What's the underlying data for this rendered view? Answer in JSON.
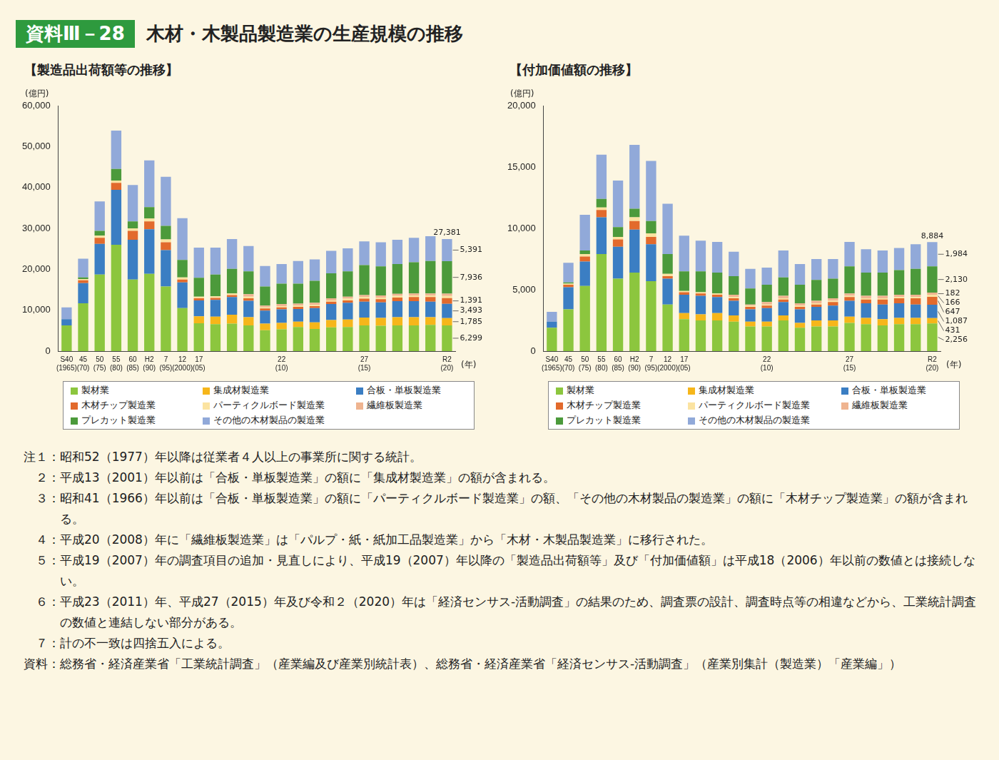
{
  "header": {
    "badge": "資料Ⅲ－28",
    "title": "木材・木製品製造業の生産規模の推移"
  },
  "chart_data": [
    {
      "type": "bar",
      "title": "【製造品出荷額等の推移】",
      "y_label": "(億円)",
      "x_label": "(年)",
      "stacked": true,
      "grid": false,
      "legend": "bottom",
      "categories": [
        [
          "S40",
          "(1965)"
        ],
        [
          "45",
          "(70)"
        ],
        [
          "50",
          "(75)"
        ],
        [
          "55",
          "(80)"
        ],
        [
          "60",
          "(85)"
        ],
        [
          "H2",
          "(90)"
        ],
        [
          "7",
          "(95)"
        ],
        [
          "12",
          "(2000)"
        ],
        [
          "17",
          "(05)"
        ],
        null,
        null,
        null,
        null,
        [
          "22",
          "(10)"
        ],
        null,
        null,
        null,
        null,
        [
          "27",
          "(15)"
        ],
        null,
        null,
        null,
        null,
        [
          "R2",
          "(20)"
        ]
      ],
      "ylim": [
        0,
        60000
      ],
      "yticks": [
        0,
        {
          "value": 10000,
          "label": "10,000"
        },
        {
          "value": 20000,
          "label": "20,000"
        },
        {
          "value": 30000,
          "label": "30,000"
        },
        {
          "value": 40000,
          "label": "40,000"
        },
        {
          "value": 50000,
          "label": "50,000"
        },
        {
          "value": 60000,
          "label": "60,000"
        }
      ],
      "series": [
        {
          "name": "製材業",
          "color": "#8cc63e",
          "values": [
            6300,
            11700,
            18700,
            26000,
            17500,
            18900,
            15800,
            10500,
            6800,
            6600,
            6700,
            6300,
            5100,
            5300,
            5900,
            5400,
            5800,
            5900,
            6300,
            6200,
            6300,
            6300,
            6400,
            6299
          ],
          "value_labels": [
            null,
            null,
            null,
            null,
            null,
            null,
            null,
            null,
            null,
            null,
            null,
            null,
            null,
            null,
            null,
            null,
            null,
            null,
            null,
            null,
            null,
            null,
            null,
            "6,299"
          ]
        },
        {
          "name": "集成材製造業",
          "color": "#f6b61a",
          "values": [
            null,
            null,
            null,
            null,
            null,
            null,
            null,
            null,
            1700,
            1800,
            2200,
            2000,
            1600,
            1600,
            1300,
            1600,
            1800,
            1800,
            1900,
            1900,
            2000,
            2000,
            1900,
            1785
          ],
          "value_labels": [
            null,
            null,
            null,
            null,
            null,
            null,
            null,
            null,
            null,
            null,
            null,
            null,
            null,
            null,
            null,
            null,
            null,
            null,
            null,
            null,
            null,
            null,
            null,
            "1,785"
          ]
        },
        {
          "name": "合板・単板製造業",
          "color": "#3b7ec3",
          "values": [
            1500,
            4900,
            7500,
            13400,
            9700,
            10900,
            8900,
            6300,
            3900,
            4100,
            4300,
            4000,
            3200,
            3300,
            3100,
            3500,
            3900,
            4100,
            3900,
            3800,
            3900,
            3900,
            3800,
            3493
          ],
          "value_labels": [
            null,
            null,
            null,
            null,
            null,
            null,
            null,
            null,
            null,
            null,
            null,
            null,
            null,
            null,
            null,
            null,
            null,
            null,
            null,
            null,
            null,
            null,
            null,
            "3,493"
          ]
        },
        {
          "name": "木材チップ製造業",
          "color": "#e26a2c",
          "values": [
            null,
            700,
            1500,
            1700,
            2200,
            1900,
            1900,
            700,
            500,
            500,
            500,
            600,
            500,
            500,
            500,
            500,
            600,
            600,
            700,
            800,
            900,
            1000,
            1100,
            1391
          ],
          "value_labels": [
            null,
            null,
            null,
            null,
            null,
            null,
            null,
            null,
            null,
            null,
            null,
            null,
            null,
            null,
            null,
            null,
            null,
            null,
            null,
            null,
            null,
            null,
            null,
            "1,391"
          ]
        },
        {
          "name": "パーティクルボード製造業",
          "color": "#fbe3a1",
          "values": [
            null,
            300,
            500,
            600,
            600,
            700,
            700,
            500,
            400,
            400,
            400,
            400,
            300,
            300,
            300,
            300,
            300,
            400,
            400,
            400,
            400,
            400,
            400,
            500
          ]
        },
        {
          "name": "繊維板製造業",
          "color": "#efb490",
          "values": [
            null,
            null,
            null,
            null,
            null,
            null,
            null,
            null,
            null,
            null,
            null,
            600,
            400,
            500,
            500,
            500,
            500,
            500,
            500,
            500,
            500,
            500,
            500,
            586
          ]
        },
        {
          "name": "プレカット製造業",
          "color": "#4c9a3b",
          "values": [
            null,
            400,
            1200,
            2800,
            1700,
            2800,
            3300,
            4300,
            4600,
            5300,
            6000,
            5600,
            4700,
            5000,
            4900,
            5400,
            6100,
            6200,
            7300,
            7100,
            7300,
            7600,
            7900,
            7936
          ],
          "value_labels": [
            null,
            null,
            null,
            null,
            null,
            null,
            null,
            null,
            null,
            null,
            null,
            null,
            null,
            null,
            null,
            null,
            null,
            null,
            null,
            null,
            null,
            null,
            null,
            "7,936"
          ]
        },
        {
          "name": "その他の木材製品の製造業",
          "color": "#91a9d9",
          "values": [
            2900,
            4600,
            7200,
            9400,
            8900,
            11400,
            12000,
            10200,
            7400,
            6600,
            7300,
            6200,
            5000,
            4800,
            5500,
            5200,
            5500,
            5600,
            5800,
            5900,
            5900,
            6000,
            6100,
            5391
          ],
          "value_labels": [
            null,
            null,
            null,
            null,
            null,
            null,
            null,
            null,
            null,
            null,
            null,
            null,
            null,
            null,
            null,
            null,
            null,
            null,
            null,
            null,
            null,
            null,
            null,
            "5,391"
          ]
        }
      ],
      "annotations": [
        {
          "index": 23,
          "value": 27381,
          "text": "27,381"
        }
      ]
    },
    {
      "type": "bar",
      "title": "【付加価値額の推移】",
      "y_label": "(億円)",
      "x_label": "(年)",
      "stacked": true,
      "grid": false,
      "legend": "bottom",
      "categories": [
        [
          "S40",
          "(1965)"
        ],
        [
          "45",
          "(70)"
        ],
        [
          "50",
          "(75)"
        ],
        [
          "55",
          "(80)"
        ],
        [
          "60",
          "(85)"
        ],
        [
          "H2",
          "(90)"
        ],
        [
          "7",
          "(95)"
        ],
        [
          "12",
          "(2000)"
        ],
        [
          "17",
          "(05)"
        ],
        null,
        null,
        null,
        null,
        [
          "22",
          "(10)"
        ],
        null,
        null,
        null,
        null,
        [
          "27",
          "(15)"
        ],
        null,
        null,
        null,
        null,
        [
          "R2",
          "(20)"
        ]
      ],
      "ylim": [
        0,
        20000
      ],
      "yticks": [
        0,
        {
          "value": 5000,
          "label": "5,000"
        },
        {
          "value": 10000,
          "label": "10,000"
        },
        {
          "value": 15000,
          "label": "15,000"
        },
        {
          "value": 20000,
          "label": "20,000"
        }
      ],
      "series": [
        {
          "name": "製材業",
          "color": "#8cc63e",
          "values": [
            1900,
            3400,
            5300,
            7900,
            5900,
            6400,
            5700,
            3800,
            2600,
            2500,
            2500,
            2400,
            2000,
            2000,
            2500,
            1900,
            2000,
            2000,
            2300,
            2200,
            2100,
            2200,
            2200,
            2256
          ],
          "value_labels": [
            null,
            null,
            null,
            null,
            null,
            null,
            null,
            null,
            null,
            null,
            null,
            null,
            null,
            null,
            null,
            null,
            null,
            null,
            null,
            null,
            null,
            null,
            null,
            "2,256"
          ]
        },
        {
          "name": "集成材製造業",
          "color": "#f6b61a",
          "values": [
            null,
            null,
            null,
            null,
            null,
            null,
            null,
            null,
            500,
            500,
            600,
            500,
            400,
            400,
            400,
            400,
            500,
            500,
            500,
            500,
            500,
            500,
            500,
            431
          ],
          "value_labels": [
            null,
            null,
            null,
            null,
            null,
            null,
            null,
            null,
            null,
            null,
            null,
            null,
            null,
            null,
            null,
            null,
            null,
            null,
            null,
            null,
            null,
            null,
            null,
            "431"
          ]
        },
        {
          "name": "合板・単板製造業",
          "color": "#3b7ec3",
          "values": [
            500,
            1800,
            2000,
            3000,
            2600,
            3500,
            3000,
            2100,
            1500,
            1500,
            1300,
            1200,
            1000,
            1100,
            1100,
            1100,
            1100,
            1200,
            1300,
            1200,
            1200,
            1200,
            1100,
            1087
          ],
          "value_labels": [
            null,
            null,
            null,
            null,
            null,
            null,
            null,
            null,
            null,
            null,
            null,
            null,
            null,
            null,
            null,
            null,
            null,
            null,
            null,
            null,
            null,
            null,
            null,
            "1,087"
          ]
        },
        {
          "name": "木材チップ製造業",
          "color": "#e26a2c",
          "values": [
            null,
            200,
            400,
            600,
            600,
            700,
            600,
            200,
            200,
            200,
            200,
            200,
            200,
            200,
            200,
            200,
            200,
            300,
            300,
            300,
            400,
            400,
            500,
            647
          ],
          "value_labels": [
            null,
            null,
            null,
            null,
            null,
            null,
            null,
            null,
            null,
            null,
            null,
            null,
            null,
            null,
            null,
            null,
            null,
            null,
            null,
            null,
            null,
            null,
            null,
            "647"
          ]
        },
        {
          "name": "パーティクルボード製造業",
          "color": "#fbe3a1",
          "values": [
            null,
            100,
            200,
            200,
            200,
            300,
            300,
            200,
            100,
            100,
            100,
            100,
            100,
            100,
            100,
            100,
            100,
            100,
            100,
            100,
            100,
            100,
            100,
            166
          ],
          "value_labels": [
            null,
            null,
            null,
            null,
            null,
            null,
            null,
            null,
            null,
            null,
            null,
            null,
            null,
            null,
            null,
            null,
            null,
            null,
            null,
            null,
            null,
            null,
            null,
            "166"
          ]
        },
        {
          "name": "繊維板製造業",
          "color": "#efb490",
          "values": [
            null,
            null,
            null,
            null,
            null,
            null,
            null,
            null,
            null,
            null,
            null,
            200,
            100,
            200,
            200,
            200,
            200,
            200,
            200,
            200,
            200,
            200,
            200,
            182
          ],
          "value_labels": [
            null,
            null,
            null,
            null,
            null,
            null,
            null,
            null,
            null,
            null,
            null,
            null,
            null,
            null,
            null,
            null,
            null,
            null,
            null,
            null,
            null,
            null,
            null,
            "182"
          ]
        },
        {
          "name": "プレカット製造業",
          "color": "#4c9a3b",
          "values": [
            null,
            100,
            300,
            700,
            800,
            700,
            1000,
            1600,
            1600,
            1700,
            1700,
            1500,
            1300,
            1400,
            1500,
            1500,
            1700,
            1600,
            2200,
            1900,
            1900,
            2000,
            2100,
            2130
          ],
          "value_labels": [
            null,
            null,
            null,
            null,
            null,
            null,
            null,
            null,
            null,
            null,
            null,
            null,
            null,
            null,
            null,
            null,
            null,
            null,
            null,
            null,
            null,
            null,
            null,
            "2,130"
          ]
        },
        {
          "name": "その他の木材製品の製造業",
          "color": "#91a9d9",
          "values": [
            800,
            1600,
            2900,
            3600,
            3800,
            5200,
            4900,
            4100,
            2900,
            2500,
            2500,
            2000,
            1600,
            1400,
            2200,
            1700,
            1700,
            1600,
            2000,
            1900,
            1800,
            1800,
            2000,
            1984
          ],
          "value_labels": [
            null,
            null,
            null,
            null,
            null,
            null,
            null,
            null,
            null,
            null,
            null,
            null,
            null,
            null,
            null,
            null,
            null,
            null,
            null,
            null,
            null,
            null,
            null,
            "1,984"
          ]
        }
      ],
      "annotations": [
        {
          "index": 23,
          "value": 8884,
          "text": "8,884"
        }
      ]
    }
  ],
  "notes": [
    {
      "label": "注１：",
      "text": "昭和52（1977）年以降は従業者４人以上の事業所に関する統計。"
    },
    {
      "label": "２：",
      "text": "平成13（2001）年以前は「合板・単板製造業」の額に「集成材製造業」の額が含まれる。"
    },
    {
      "label": "３：",
      "text": "昭和41（1966）年以前は「合板・単板製造業」の額に「パーティクルボード製造業」の額、「その他の木材製品の製造業」の額に「木材チップ製造業」の額が含まれる。"
    },
    {
      "label": "４：",
      "text": "平成20（2008）年に「繊維板製造業」は「パルプ・紙・紙加工品製造業」から「木材・木製品製造業」に移行された。"
    },
    {
      "label": "５：",
      "text": "平成19（2007）年の調査項目の追加・見直しにより、平成19（2007）年以降の「製造品出荷額等」及び「付加価値額」は平成18（2006）年以前の数値とは接続しない。"
    },
    {
      "label": "６：",
      "text": "平成23（2011）年、平成27（2015）年及び令和２（2020）年は「経済センサス-活動調査」の結果のため、調査票の設計、調査時点等の相違などから、工業統計調査の数値と連結しない部分がある。"
    },
    {
      "label": "７：",
      "text": "計の不一致は四捨五入による。"
    },
    {
      "label": "資料：",
      "text": "総務省・経済産業省「工業統計調査」（産業編及び産業別統計表）、総務省・経済産業省「経済センサス-活動調査」（産業別集計（製造業）「産業編」）"
    }
  ]
}
